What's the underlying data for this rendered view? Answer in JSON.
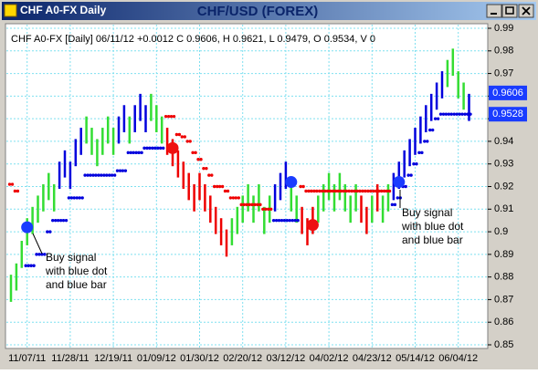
{
  "chart_data": {
    "type": "bar-range",
    "window_title": "CHF A0-FX Daily",
    "title": "CHF/USD (FOREX)",
    "subtitle": "CHF A0-FX [Daily] 06/11/12 +0.0012 C 0.9606, H 0.9621, L 0.9479, O 0.9534, V 0",
    "categories": [
      null,
      null,
      null,
      "11/07/11",
      null,
      null,
      null,
      null,
      null,
      null,
      null,
      "11/28/11",
      null,
      null,
      null,
      null,
      null,
      null,
      null,
      "12/19/11",
      null,
      null,
      null,
      null,
      null,
      null,
      null,
      "01/09/12",
      null,
      null,
      null,
      null,
      null,
      null,
      null,
      "01/30/12",
      null,
      null,
      null,
      null,
      null,
      null,
      null,
      "02/20/12",
      null,
      null,
      null,
      null,
      null,
      null,
      null,
      "03/12/12",
      null,
      null,
      null,
      null,
      null,
      null,
      null,
      "04/02/12",
      null,
      null,
      null,
      null,
      null,
      null,
      null,
      "04/23/12",
      null,
      null,
      null,
      null,
      null,
      null,
      null,
      "05/14/12",
      null,
      null,
      null,
      null,
      null,
      null,
      null,
      "06/04/12",
      null,
      null
    ],
    "high": [
      0.881,
      0.886,
      0.896,
      0.906,
      0.911,
      0.916,
      0.921,
      0.926,
      0.921,
      0.931,
      0.936,
      0.931,
      0.941,
      0.946,
      0.951,
      0.946,
      0.941,
      0.946,
      0.951,
      0.946,
      0.951,
      0.956,
      0.951,
      0.956,
      0.961,
      0.956,
      0.961,
      0.956,
      0.951,
      0.946,
      0.941,
      0.936,
      0.931,
      0.926,
      0.921,
      0.926,
      0.921,
      0.916,
      0.911,
      0.906,
      0.901,
      0.906,
      0.911,
      0.916,
      0.921,
      0.916,
      0.921,
      0.911,
      0.916,
      0.921,
      0.926,
      0.931,
      0.921,
      0.916,
      0.911,
      0.906,
      0.911,
      0.916,
      0.921,
      0.926,
      0.921,
      0.926,
      0.921,
      0.916,
      0.921,
      0.916,
      0.911,
      0.916,
      0.921,
      0.916,
      0.921,
      0.926,
      0.931,
      0.936,
      0.941,
      0.946,
      0.951,
      0.956,
      0.961,
      0.966,
      0.971,
      0.976,
      0.981,
      0.971,
      0.966,
      0.961
    ],
    "low": [
      0.869,
      0.874,
      0.884,
      0.894,
      0.899,
      0.904,
      0.909,
      0.914,
      0.909,
      0.919,
      0.924,
      0.919,
      0.929,
      0.934,
      0.939,
      0.934,
      0.929,
      0.934,
      0.939,
      0.934,
      0.939,
      0.944,
      0.939,
      0.944,
      0.949,
      0.944,
      0.949,
      0.944,
      0.939,
      0.934,
      0.929,
      0.924,
      0.919,
      0.914,
      0.909,
      0.914,
      0.909,
      0.904,
      0.899,
      0.894,
      0.889,
      0.894,
      0.899,
      0.904,
      0.909,
      0.904,
      0.909,
      0.899,
      0.904,
      0.909,
      0.914,
      0.919,
      0.909,
      0.904,
      0.899,
      0.894,
      0.899,
      0.904,
      0.909,
      0.914,
      0.909,
      0.914,
      0.909,
      0.904,
      0.909,
      0.904,
      0.899,
      0.904,
      0.909,
      0.904,
      0.909,
      0.914,
      0.919,
      0.924,
      0.929,
      0.934,
      0.939,
      0.944,
      0.949,
      0.954,
      0.959,
      0.964,
      0.969,
      0.959,
      0.954,
      0.949
    ],
    "bar_colors": [
      "#33dd33",
      "#33dd33",
      "#33dd33",
      "#33dd33",
      "#33dd33",
      "#33dd33",
      "#33dd33",
      "#33dd33",
      "#33dd33",
      "#0000dd",
      "#0000dd",
      "#0000dd",
      "#0000dd",
      "#0000dd",
      "#33dd33",
      "#33dd33",
      "#33dd33",
      "#33dd33",
      "#33dd33",
      "#33dd33",
      "#0000dd",
      "#0000dd",
      "#33dd33",
      "#0000dd",
      "#0000dd",
      "#0000dd",
      "#33dd33",
      "#33dd33",
      "#33dd33",
      "#ee0000",
      "#ee0000",
      "#ee0000",
      "#ee0000",
      "#ee0000",
      "#ee0000",
      "#ee0000",
      "#ee0000",
      "#ee0000",
      "#ee0000",
      "#ee0000",
      "#ee0000",
      "#33dd33",
      "#33dd33",
      "#33dd33",
      "#33dd33",
      "#33dd33",
      "#33dd33",
      "#33dd33",
      "#33dd33",
      "#0000dd",
      "#0000dd",
      "#0000dd",
      "#33dd33",
      "#33dd33",
      "#ee0000",
      "#ee0000",
      "#ee0000",
      "#33dd33",
      "#33dd33",
      "#33dd33",
      "#33dd33",
      "#33dd33",
      "#33dd33",
      "#33dd33",
      "#33dd33",
      "#ee0000",
      "#ee0000",
      "#33dd33",
      "#ee0000",
      "#33dd33",
      "#33dd33",
      "#0000dd",
      "#0000dd",
      "#0000dd",
      "#0000dd",
      "#0000dd",
      "#0000dd",
      "#0000dd",
      "#0000dd",
      "#0000dd",
      "#0000dd",
      "#33dd33",
      "#33dd33",
      "#33dd33",
      "#33dd33",
      "#0000dd"
    ],
    "stop": [
      0.921,
      0.918,
      null,
      0.885,
      0.885,
      0.89,
      0.89,
      0.9,
      0.905,
      0.905,
      0.905,
      0.915,
      0.915,
      0.915,
      0.925,
      0.925,
      0.925,
      0.925,
      0.925,
      0.925,
      0.927,
      0.927,
      0.935,
      0.935,
      0.935,
      0.937,
      0.937,
      0.937,
      0.937,
      0.951,
      0.951,
      0.943,
      0.942,
      0.94,
      0.935,
      0.932,
      0.928,
      0.925,
      0.92,
      0.92,
      0.918,
      0.915,
      0.915,
      0.912,
      0.912,
      0.912,
      0.912,
      0.91,
      0.91,
      0.905,
      0.905,
      0.905,
      0.905,
      0.905,
      0.92,
      0.918,
      0.918,
      0.918,
      0.918,
      0.918,
      0.918,
      0.918,
      0.918,
      0.918,
      0.918,
      0.918,
      0.918,
      0.918,
      0.918,
      0.918,
      0.918,
      0.912,
      0.915,
      0.92,
      0.925,
      0.93,
      0.935,
      0.94,
      0.945,
      0.95,
      0.952,
      0.952,
      0.952,
      0.952,
      0.952,
      0.952
    ],
    "stop_colors": [
      "#ee0000",
      "#ee0000",
      null,
      "#0000dd",
      "#0000dd",
      "#0000dd",
      "#0000dd",
      "#0000dd",
      "#0000dd",
      "#0000dd",
      "#0000dd",
      "#0000dd",
      "#0000dd",
      "#0000dd",
      "#0000dd",
      "#0000dd",
      "#0000dd",
      "#0000dd",
      "#0000dd",
      "#0000dd",
      "#0000dd",
      "#0000dd",
      "#0000dd",
      "#0000dd",
      "#0000dd",
      "#0000dd",
      "#0000dd",
      "#0000dd",
      "#0000dd",
      "#ee0000",
      "#ee0000",
      "#ee0000",
      "#ee0000",
      "#ee0000",
      "#ee0000",
      "#ee0000",
      "#ee0000",
      "#ee0000",
      "#ee0000",
      "#ee0000",
      "#ee0000",
      "#ee0000",
      "#ee0000",
      "#ee0000",
      "#ee0000",
      "#ee0000",
      "#ee0000",
      "#ee0000",
      "#ee0000",
      "#0000dd",
      "#0000dd",
      "#0000dd",
      "#0000dd",
      "#0000dd",
      "#ee0000",
      "#ee0000",
      "#ee0000",
      "#ee0000",
      "#ee0000",
      "#ee0000",
      "#ee0000",
      "#ee0000",
      "#ee0000",
      "#ee0000",
      "#ee0000",
      "#ee0000",
      "#ee0000",
      "#ee0000",
      "#ee0000",
      "#ee0000",
      "#ee0000",
      "#0000dd",
      "#0000dd",
      "#0000dd",
      "#0000dd",
      "#0000dd",
      "#0000dd",
      "#0000dd",
      "#0000dd",
      "#0000dd",
      "#0000dd",
      "#0000dd",
      "#0000dd",
      "#0000dd",
      "#0000dd",
      "#0000dd"
    ],
    "signals": {
      "x": [
        3,
        30,
        52,
        56,
        72
      ],
      "values": [
        0.902,
        0.937,
        0.922,
        0.903,
        0.922
      ],
      "colors": [
        "#1a3cff",
        "#ee1111",
        "#1a3cff",
        "#ee1111",
        "#1a3cff"
      ]
    },
    "last_values": {
      "values": [
        0.9606,
        0.9528
      ],
      "color": "#1a3cff"
    },
    "annotations": [
      {
        "lines": [
          "Buy signal",
          "with blue dot",
          "and blue bar"
        ]
      },
      {
        "lines": [
          "Buy signal",
          "with blue dot",
          "and blue bar"
        ]
      }
    ],
    "ylim": [
      0.85,
      0.99
    ],
    "yticks": [
      0.85,
      0.86,
      0.87,
      0.88,
      0.89,
      0.9,
      0.91,
      0.92,
      0.93,
      0.94,
      0.95,
      0.96,
      0.97,
      0.98,
      0.99
    ],
    "grid": true,
    "grid_color": "#7fe0f0"
  }
}
